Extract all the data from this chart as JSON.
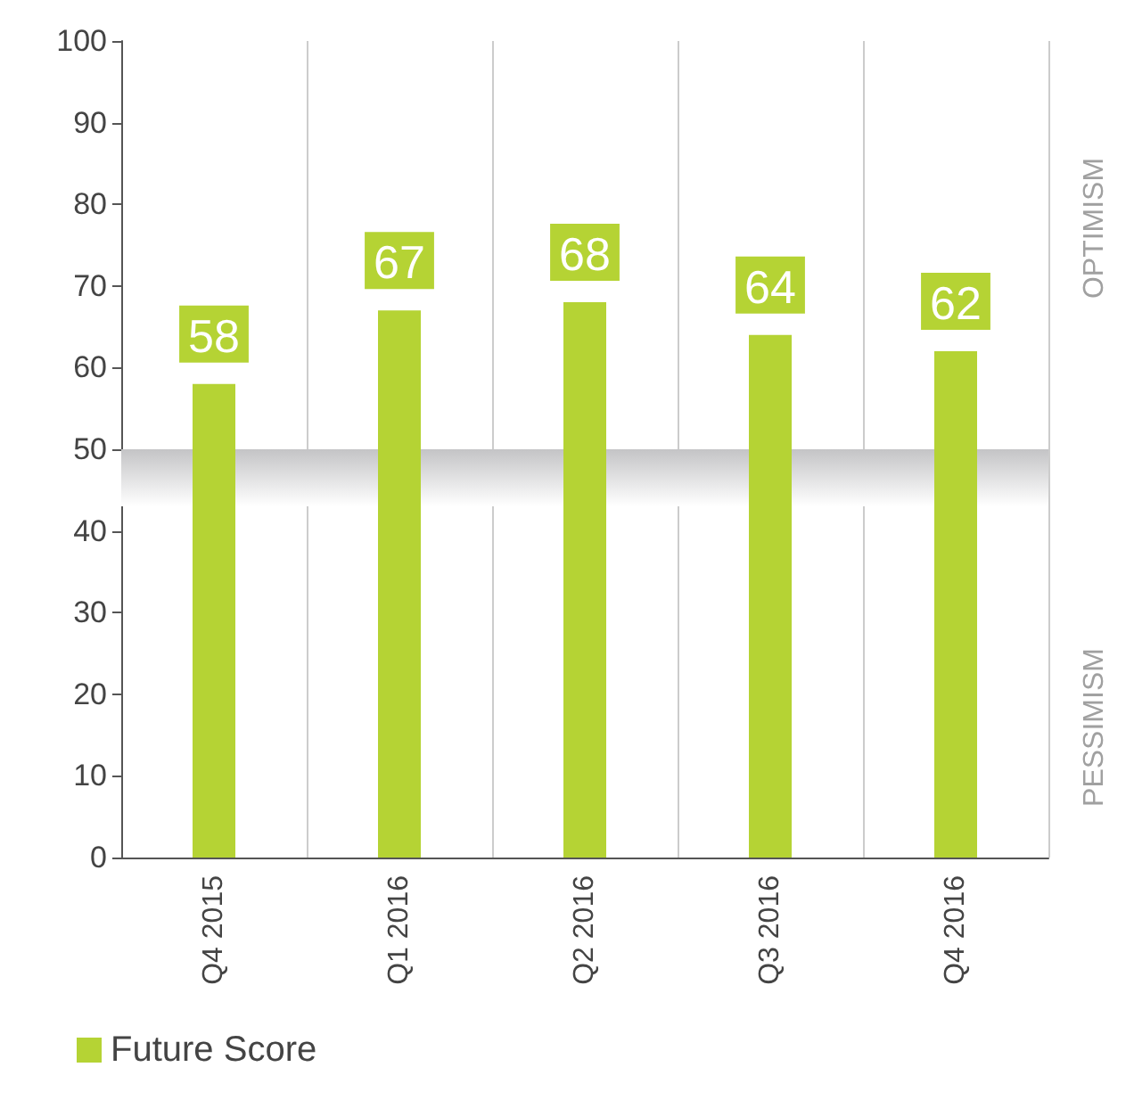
{
  "chart_data": {
    "type": "bar",
    "categories": [
      "Q4 2015",
      "Q1 2016",
      "Q2 2016",
      "Q3 2016",
      "Q4 2016"
    ],
    "series": [
      {
        "name": "Future Score",
        "color": "#b5d334",
        "values": [
          58,
          67,
          68,
          64,
          62
        ]
      }
    ],
    "ylim": [
      0,
      100
    ],
    "yticks": [
      0,
      10,
      20,
      30,
      40,
      50,
      60,
      70,
      80,
      90,
      100
    ],
    "grid": "x",
    "legend": "bottom left",
    "data_labels": true,
    "bands": [
      {
        "axis": "y",
        "from": 43,
        "to": 50,
        "color": "#c4c4c6"
      }
    ],
    "annotations": [
      "OPTIMISM",
      "PESSIMISM"
    ]
  }
}
